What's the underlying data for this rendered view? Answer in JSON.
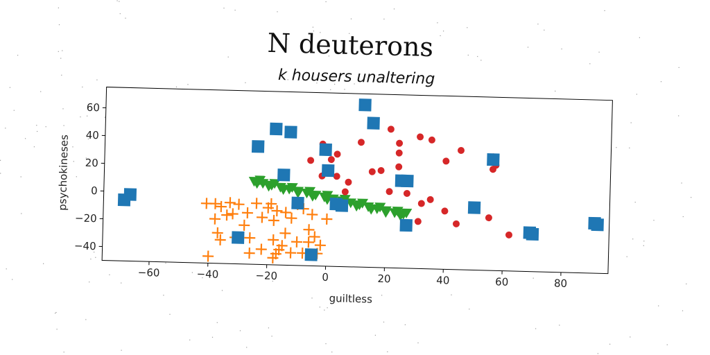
{
  "figure": {
    "suptitle": "N deuterons"
  },
  "chart_data": {
    "type": "scatter",
    "title": "k housers unaltering",
    "xlabel": "guiltless",
    "ylabel": "psychokineses",
    "xlim": [
      -76,
      96
    ],
    "ylim": [
      -50,
      75
    ],
    "xticks": [
      -60,
      -40,
      -20,
      0,
      20,
      40,
      60,
      80
    ],
    "yticks": [
      -40,
      -20,
      0,
      20,
      40,
      60
    ],
    "grid": false,
    "legend": "none",
    "series": [
      {
        "marker": "square",
        "color": "#1f77b4",
        "points": [
          [
            12,
            67
          ],
          [
            15,
            54
          ],
          [
            -18,
            48
          ],
          [
            -13,
            46
          ],
          [
            -24,
            35
          ],
          [
            -1,
            34
          ],
          [
            56,
            30
          ],
          [
            0,
            19
          ],
          [
            -15,
            15
          ],
          [
            25,
            13
          ],
          [
            27,
            13
          ],
          [
            -67,
            -2
          ],
          [
            -69,
            -6
          ],
          [
            -10,
            -5
          ],
          [
            3,
            -5
          ],
          [
            5,
            -6
          ],
          [
            50,
            -5
          ],
          [
            27,
            -19
          ],
          [
            91,
            -14
          ],
          [
            92,
            -15
          ],
          [
            69,
            -22
          ],
          [
            70,
            -23
          ],
          [
            -30,
            -31
          ],
          [
            -5,
            -42
          ]
        ]
      },
      {
        "marker": "circle",
        "color": "#d62728",
        "points": [
          [
            21,
            50
          ],
          [
            31,
            45
          ],
          [
            35,
            43
          ],
          [
            45,
            36
          ],
          [
            11,
            40
          ],
          [
            24,
            40
          ],
          [
            -2,
            38
          ],
          [
            3,
            31
          ],
          [
            24,
            33
          ],
          [
            40,
            28
          ],
          [
            56,
            32
          ],
          [
            57,
            26
          ],
          [
            -6,
            26
          ],
          [
            1,
            27
          ],
          [
            24,
            23
          ],
          [
            56,
            23
          ],
          [
            15,
            19
          ],
          [
            18,
            20
          ],
          [
            -2,
            15
          ],
          [
            3,
            15
          ],
          [
            7,
            11
          ],
          [
            6,
            4
          ],
          [
            21,
            5
          ],
          [
            27,
            4
          ],
          [
            32,
            -3
          ],
          [
            35,
            0
          ],
          [
            40,
            -8
          ],
          [
            44,
            -17
          ],
          [
            55,
            -12
          ],
          [
            31,
            -16
          ],
          [
            62,
            -24
          ]
        ]
      },
      {
        "marker": "plus",
        "color": "#ff7f0e",
        "points": [
          [
            -41,
            -7
          ],
          [
            -38,
            -7
          ],
          [
            -36,
            -9
          ],
          [
            -33,
            -6
          ],
          [
            -30,
            -7
          ],
          [
            -24,
            -6
          ],
          [
            -19,
            -6
          ],
          [
            -20,
            -9
          ],
          [
            -17,
            -11
          ],
          [
            -14,
            -12
          ],
          [
            -10,
            -6
          ],
          [
            -8,
            -9
          ],
          [
            -5,
            -13
          ],
          [
            0,
            -16
          ],
          [
            -34,
            -15
          ],
          [
            -32,
            -14
          ],
          [
            -27,
            -13
          ],
          [
            -22,
            -16
          ],
          [
            -18,
            -18
          ],
          [
            -12,
            -16
          ],
          [
            -38,
            -18
          ],
          [
            -28,
            -22
          ],
          [
            -6,
            -24
          ],
          [
            -14,
            -27
          ],
          [
            -4,
            -29
          ],
          [
            -37,
            -28
          ],
          [
            -36,
            -33
          ],
          [
            -31,
            -31
          ],
          [
            -26,
            -31
          ],
          [
            -18,
            -32
          ],
          [
            -10,
            -33
          ],
          [
            -6,
            -33
          ],
          [
            -2,
            -35
          ],
          [
            -15,
            -36
          ],
          [
            -22,
            -39
          ],
          [
            -16,
            -39
          ],
          [
            -12,
            -41
          ],
          [
            -8,
            -41
          ],
          [
            -3,
            -41
          ],
          [
            -26,
            -42
          ],
          [
            -17,
            -42
          ],
          [
            -18,
            -45
          ],
          [
            -40,
            -45
          ]
        ]
      },
      {
        "marker": "triangle-down",
        "color": "#2ca02c",
        "points": [
          [
            -25,
            10
          ],
          [
            -22,
            8.7
          ],
          [
            -19,
            7.5
          ],
          [
            -16,
            6.2
          ],
          [
            -13,
            5
          ],
          [
            -10,
            3.7
          ],
          [
            -7,
            2.5
          ],
          [
            -4,
            1.2
          ],
          [
            -1,
            0
          ],
          [
            2,
            -1.2
          ],
          [
            5,
            -2.5
          ],
          [
            8,
            -3.7
          ],
          [
            11,
            -5
          ],
          [
            14,
            -6.2
          ],
          [
            17,
            -7.5
          ],
          [
            20,
            -8.7
          ],
          [
            23,
            -10
          ],
          [
            26,
            -11
          ],
          [
            -24,
            8.5
          ],
          [
            -20,
            6.7
          ],
          [
            -15,
            4.6
          ],
          [
            -10,
            2.4
          ],
          [
            -5,
            0.3
          ],
          [
            0,
            -1.8
          ],
          [
            5,
            -3.9
          ],
          [
            10,
            -6
          ],
          [
            15,
            -8
          ],
          [
            20,
            -10
          ],
          [
            25,
            -12
          ],
          [
            -23,
            11
          ],
          [
            -18,
            8.8
          ],
          [
            -12,
            6.3
          ],
          [
            -6,
            3.8
          ],
          [
            0,
            1.3
          ],
          [
            6,
            -1.2
          ],
          [
            12,
            -3.7
          ],
          [
            18,
            -6.2
          ],
          [
            24,
            -8.8
          ],
          [
            27,
            -10
          ]
        ]
      }
    ]
  }
}
